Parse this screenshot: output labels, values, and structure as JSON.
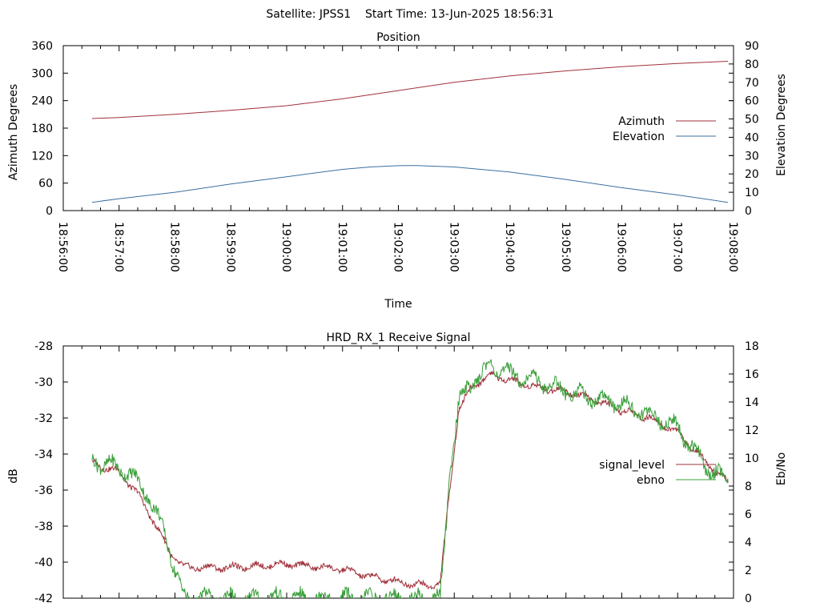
{
  "page_title": "Satellite: JPSS1    Start Time: 13-Jun-2025 18:56:31",
  "chart_data": [
    {
      "type": "line",
      "title": "Position",
      "xlabel": "Time",
      "ylabel": "Azimuth Degrees",
      "y2label": "Elevation Degrees",
      "ylim": [
        0,
        360
      ],
      "y2lim": [
        0,
        90
      ],
      "yticks": [
        "0",
        "60",
        "120",
        "180",
        "240",
        "300",
        "360"
      ],
      "y2ticks": [
        "0",
        "10",
        "20",
        "30",
        "40",
        "50",
        "60",
        "70",
        "80",
        "90"
      ],
      "x_time_range": [
        "18:56:00",
        "19:08:00"
      ],
      "x_ticks": [
        "18:56:00",
        "18:57:00",
        "18:58:00",
        "18:59:00",
        "19:00:00",
        "19:01:00",
        "19:02:00",
        "19:03:00",
        "19:04:00",
        "19:05:00",
        "19:06:00",
        "19:07:00",
        "19:08:00"
      ],
      "legend_position": "right",
      "series": [
        {
          "name": "Azimuth",
          "axis": "y1",
          "color": "#a0303a",
          "x": [
            "18:56:31",
            "18:57:00",
            "18:58:00",
            "18:59:00",
            "19:00:00",
            "19:01:00",
            "19:02:00",
            "19:03:00",
            "19:04:00",
            "19:05:00",
            "19:06:00",
            "19:07:00",
            "19:07:54"
          ],
          "values": [
            201,
            203,
            210,
            219,
            229,
            244,
            262,
            280,
            294,
            305,
            314,
            321,
            326
          ]
        },
        {
          "name": "Elevation",
          "axis": "y2",
          "color": "#3a6fa0",
          "x": [
            "18:56:31",
            "18:57:00",
            "18:58:00",
            "18:59:00",
            "19:00:00",
            "19:01:00",
            "19:01:30",
            "19:02:00",
            "19:02:20",
            "19:03:00",
            "19:04:00",
            "19:05:00",
            "19:06:00",
            "19:07:00",
            "19:07:54"
          ],
          "values": [
            4.5,
            6.5,
            10,
            14.5,
            18.5,
            22.5,
            23.8,
            24.5,
            24.6,
            23.8,
            21,
            17,
            12.5,
            8.5,
            4.5
          ]
        }
      ]
    },
    {
      "type": "line",
      "title": "HRD_RX_1 Receive Signal",
      "ylabel": "dB",
      "y2label": "Eb/No",
      "ylim": [
        -42,
        -28
      ],
      "y2lim": [
        0,
        18
      ],
      "yticks": [
        "-42",
        "-40",
        "-38",
        "-36",
        "-34",
        "-32",
        "-30",
        "-28"
      ],
      "y2ticks": [
        "0",
        "2",
        "4",
        "6",
        "8",
        "10",
        "12",
        "14",
        "16",
        "18"
      ],
      "x_time_range": [
        "18:56:00",
        "19:08:00"
      ],
      "legend_position": "right",
      "series": [
        {
          "name": "signal_level",
          "axis": "y1",
          "color": "#a0303a",
          "x": [
            "18:56:31",
            "18:57:00",
            "18:57:20",
            "18:57:40",
            "18:57:55",
            "18:58:10",
            "18:59:00",
            "19:00:00",
            "19:01:00",
            "19:01:30",
            "19:02:00",
            "19:02:30",
            "19:02:45",
            "19:02:55",
            "19:03:05",
            "19:03:20",
            "19:03:40",
            "19:04:00",
            "19:04:30",
            "19:05:00",
            "19:05:30",
            "19:06:00",
            "19:06:30",
            "19:07:00",
            "19:07:30",
            "19:07:54"
          ],
          "values": [
            -34.5,
            -35.0,
            -36.2,
            -38.0,
            -39.5,
            -40.3,
            -40.3,
            -40.1,
            -40.4,
            -40.8,
            -41.1,
            -41.3,
            -41.2,
            -36.0,
            -31.5,
            -30.2,
            -29.6,
            -29.9,
            -30.3,
            -30.5,
            -31.0,
            -31.6,
            -32.0,
            -32.8,
            -34.4,
            -35.6
          ]
        },
        {
          "name": "ebno",
          "axis": "y2",
          "color": "#3aa03a",
          "x": [
            "18:56:31",
            "18:56:50",
            "18:57:10",
            "18:57:30",
            "18:57:40",
            "18:57:50",
            "18:58:00",
            "18:58:10",
            "19:02:45",
            "19:02:50",
            "19:02:55",
            "19:03:05",
            "19:03:20",
            "19:03:40",
            "19:04:00",
            "19:04:30",
            "19:05:00",
            "19:05:30",
            "19:06:00",
            "19:06:30",
            "19:07:00",
            "19:07:30",
            "19:07:54"
          ],
          "values": [
            9.8,
            9.5,
            9.0,
            7.5,
            6.0,
            4.5,
            2.0,
            0,
            0,
            4.0,
            9.0,
            14.0,
            15.5,
            16.6,
            16.0,
            15.5,
            14.8,
            14.3,
            13.8,
            13.1,
            12.2,
            9.4,
            8.4
          ]
        }
      ]
    }
  ]
}
